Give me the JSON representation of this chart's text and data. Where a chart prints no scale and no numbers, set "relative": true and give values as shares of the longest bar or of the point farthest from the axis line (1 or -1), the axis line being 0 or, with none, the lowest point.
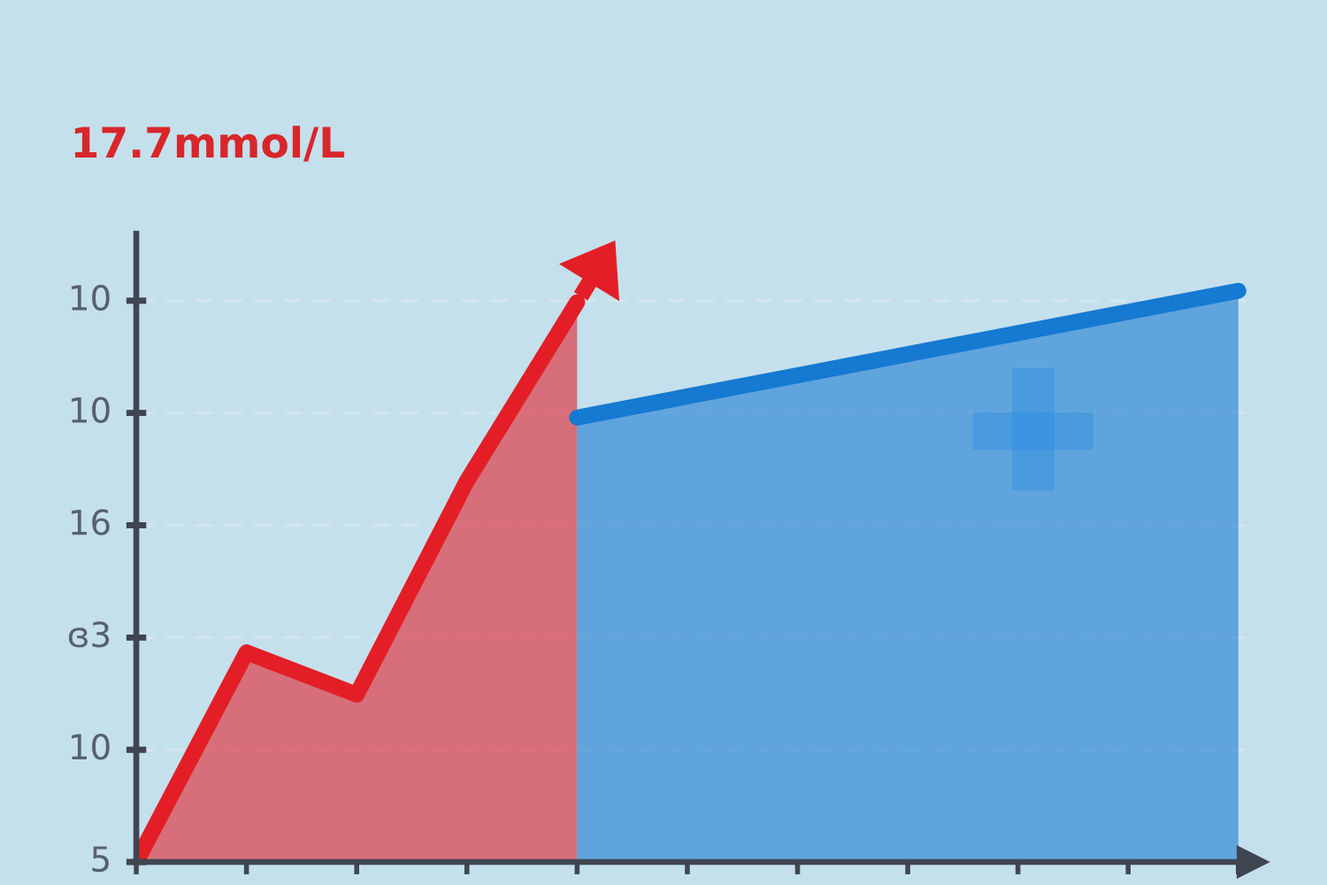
{
  "chart_data": {
    "type": "area",
    "title": "17.7mmol/L",
    "categories": [
      null,
      null,
      null,
      null,
      null,
      null,
      null,
      null,
      null,
      null,
      null
    ],
    "series": [
      {
        "color": "#e41e26",
        "values": [
          0,
          0.367,
          0.293,
          0.667,
          0.98,
          null,
          null,
          null,
          null,
          null,
          null
        ]
      },
      {
        "color": "#1679d2",
        "values": [
          null,
          null,
          null,
          null,
          0.778,
          0.815,
          0.852,
          0.889,
          0.926,
          0.963,
          1
        ]
      }
    ],
    "relative": true,
    "annotations": [
      "10",
      "10",
      "16",
      "ɞ3",
      "10",
      "5"
    ],
    "grid": "y"
  }
}
